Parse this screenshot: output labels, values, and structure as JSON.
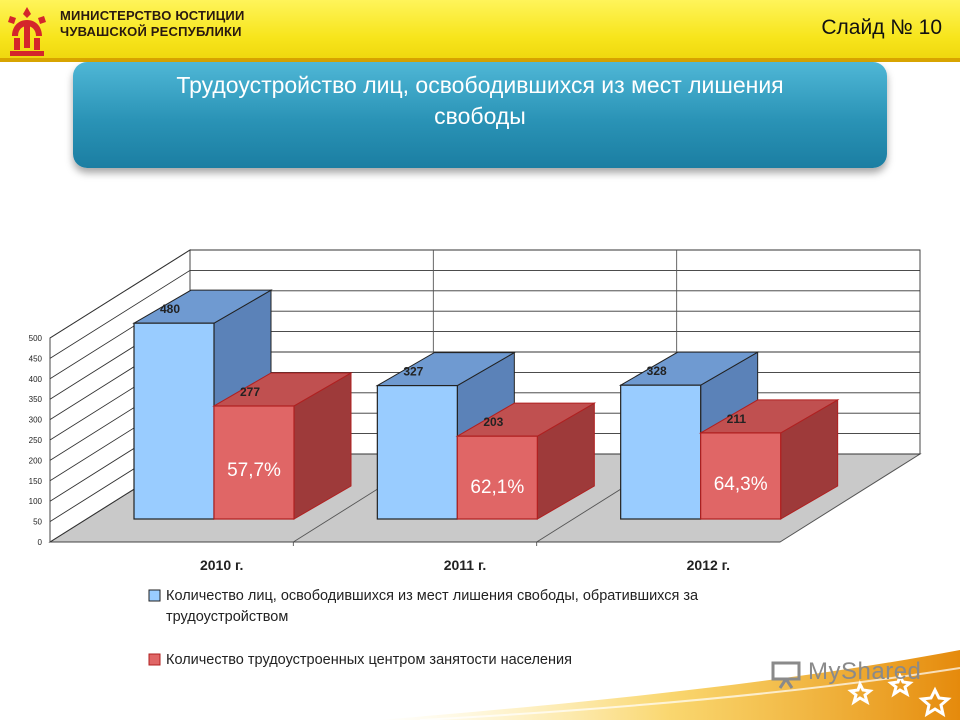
{
  "header": {
    "ministry_line_1": "МИНИСТЕРСТВО ЮСТИЦИИ",
    "ministry_line_2": "ЧУВАШСКОЙ РЕСПУБЛИКИ",
    "slide_number": "Слайд № 10",
    "logo": "chuvash-emblem-icon"
  },
  "title": {
    "line_1": "Трудоустройство лиц, освободившихся из мест лишения",
    "line_2": "свободы"
  },
  "colors": {
    "header_yellow": "#f7e51c",
    "title_blue": "#2a93b6",
    "series_blue": "#99ccff",
    "series_red": "#e06666"
  },
  "chart_data": {
    "type": "bar",
    "style": "3d-clustered",
    "categories": [
      "2010 г.",
      "2011 г.",
      "2012 г."
    ],
    "series": [
      {
        "name": "Количество лиц, освободившихся из мест лишения свободы, обратившихся за трудоустройством",
        "values": [
          480,
          327,
          328
        ],
        "color": "#99ccff"
      },
      {
        "name": "Количество трудоустроенных центром занятости населения",
        "values": [
          277,
          203,
          211
        ],
        "color": "#e06666"
      }
    ],
    "percent_labels": [
      "57,7%",
      "62,1%",
      "64,3%"
    ],
    "yticks": [
      "0",
      "50",
      "100",
      "150",
      "200",
      "250",
      "300",
      "350",
      "400",
      "450",
      "500"
    ],
    "ylim": [
      0,
      500
    ],
    "grid": true,
    "legend_position": "bottom",
    "legend_lines": [
      [
        "Количество лиц, освободившихся из мест лишения свободы, обратившихся за",
        "трудоустройством"
      ],
      [
        "Количество трудоустроенных центром занятости населения"
      ]
    ]
  },
  "watermark": {
    "text": "MyShared",
    "icon": "presentation-board-icon"
  }
}
